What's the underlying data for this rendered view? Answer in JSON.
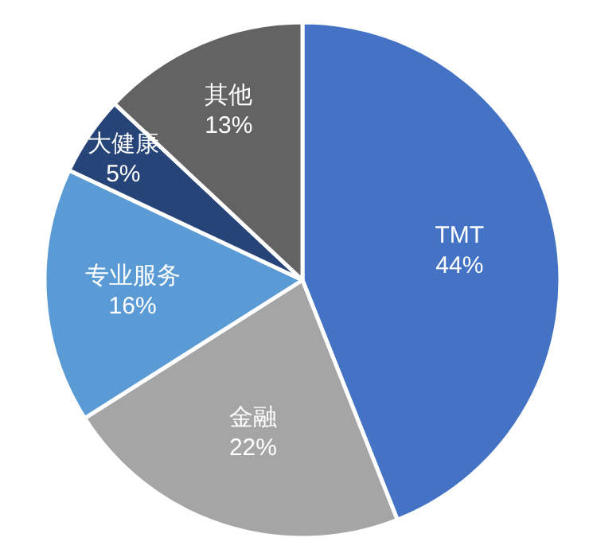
{
  "chart_data": {
    "type": "pie",
    "categories": [
      "TMT",
      "金融",
      "专业服务",
      "大健康",
      "其他"
    ],
    "values": [
      44,
      22,
      16,
      5,
      13
    ],
    "colors": [
      "#4472c4",
      "#a5a5a5",
      "#5b9bd5",
      "#264478",
      "#636363"
    ],
    "value_labels": [
      "44%",
      "22%",
      "16%",
      "5%",
      "13%"
    ]
  }
}
